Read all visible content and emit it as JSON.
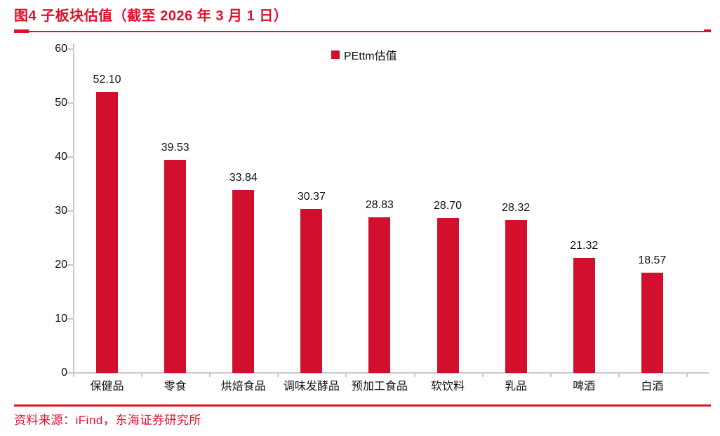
{
  "header": {
    "title": "图4  子板块估值（截至 2026 年 3 月 1 日）"
  },
  "legend": {
    "label": "PEttm估值"
  },
  "footer": {
    "source": "资料来源：iFind，东海证券研究所"
  },
  "colors": {
    "accent_red": "#e1102a",
    "bar_red": "#d2102e",
    "axis_gray": "#c9c9c9",
    "text_black": "#111111"
  },
  "chart_data": {
    "type": "bar",
    "title": "图4 子板块估值（截至 2026 年 3 月 1 日）",
    "series_name": "PEttm估值",
    "categories": [
      "保健品",
      "零食",
      "烘焙食品",
      "调味发酵品",
      "预加工食品",
      "软饮料",
      "乳品",
      "啤酒",
      "白酒"
    ],
    "values": [
      52.1,
      39.53,
      33.84,
      30.37,
      28.83,
      28.7,
      28.32,
      21.32,
      18.57
    ],
    "value_label_format": "2-decimals",
    "xlabel": "",
    "ylabel": "",
    "ylim": [
      0,
      60
    ],
    "yticks": [
      0,
      10,
      20,
      30,
      40,
      50,
      60
    ],
    "grid": false,
    "legend_position": "top-center",
    "bar_color": "#d2102e"
  }
}
